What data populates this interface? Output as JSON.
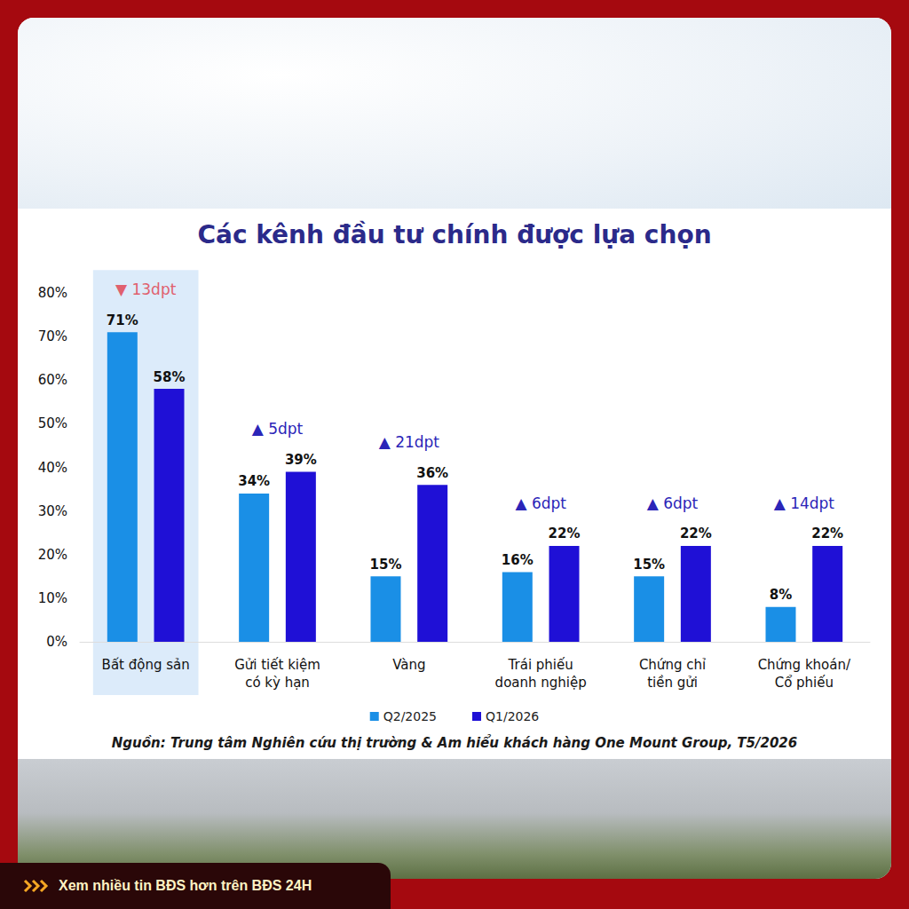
{
  "chart_data": {
    "type": "bar",
    "title": "Các kênh đầu tư chính được lựa chọn",
    "categories": [
      "Bất động sản",
      "Gửi tiết kiệm có kỳ hạn",
      "Vàng",
      "Trái phiếu doanh nghiệp",
      "Chứng chỉ tiền gửi",
      "Chứng khoán/ Cổ phiếu"
    ],
    "series": [
      {
        "name": "Q2/2025",
        "color": "#1a8fe6",
        "values": [
          71,
          34,
          15,
          16,
          15,
          8
        ],
        "value_labels": [
          "71%",
          "34%",
          "15%",
          "16%",
          "15%",
          "8%"
        ]
      },
      {
        "name": "Q1/2026",
        "color": "#1f10d6",
        "values": [
          58,
          39,
          36,
          22,
          22,
          22
        ],
        "value_labels": [
          "58%",
          "39%",
          "36%",
          "22%",
          "22%",
          "22%"
        ]
      }
    ],
    "annotations": [
      "▼ 13dpt",
      "▲ 5dpt",
      "▲ 21dpt",
      "▲ 6dpt",
      "▲ 6dpt",
      "▲ 14dpt"
    ],
    "ylim": [
      0,
      80
    ],
    "yticks": [
      {
        "value": 0,
        "label": "0%"
      },
      {
        "value": 10,
        "label": "10%"
      },
      {
        "value": 20,
        "label": "20%"
      },
      {
        "value": 30,
        "label": "30%"
      },
      {
        "value": 40,
        "label": "40%"
      },
      {
        "value": 50,
        "label": "50%"
      },
      {
        "value": 60,
        "label": "60%"
      },
      {
        "value": 70,
        "label": "70%"
      },
      {
        "value": 80,
        "label": "80%"
      }
    ],
    "grid": false,
    "legend": "bottom",
    "data_labels": true,
    "source": "Nguồn: Trung tâm Nghiên cứu thị trường & Am hiểu khách hàng One Mount Group, T5/2026",
    "footer": "Xem nhiều tin BĐS hơn trên BĐS 24H"
  }
}
